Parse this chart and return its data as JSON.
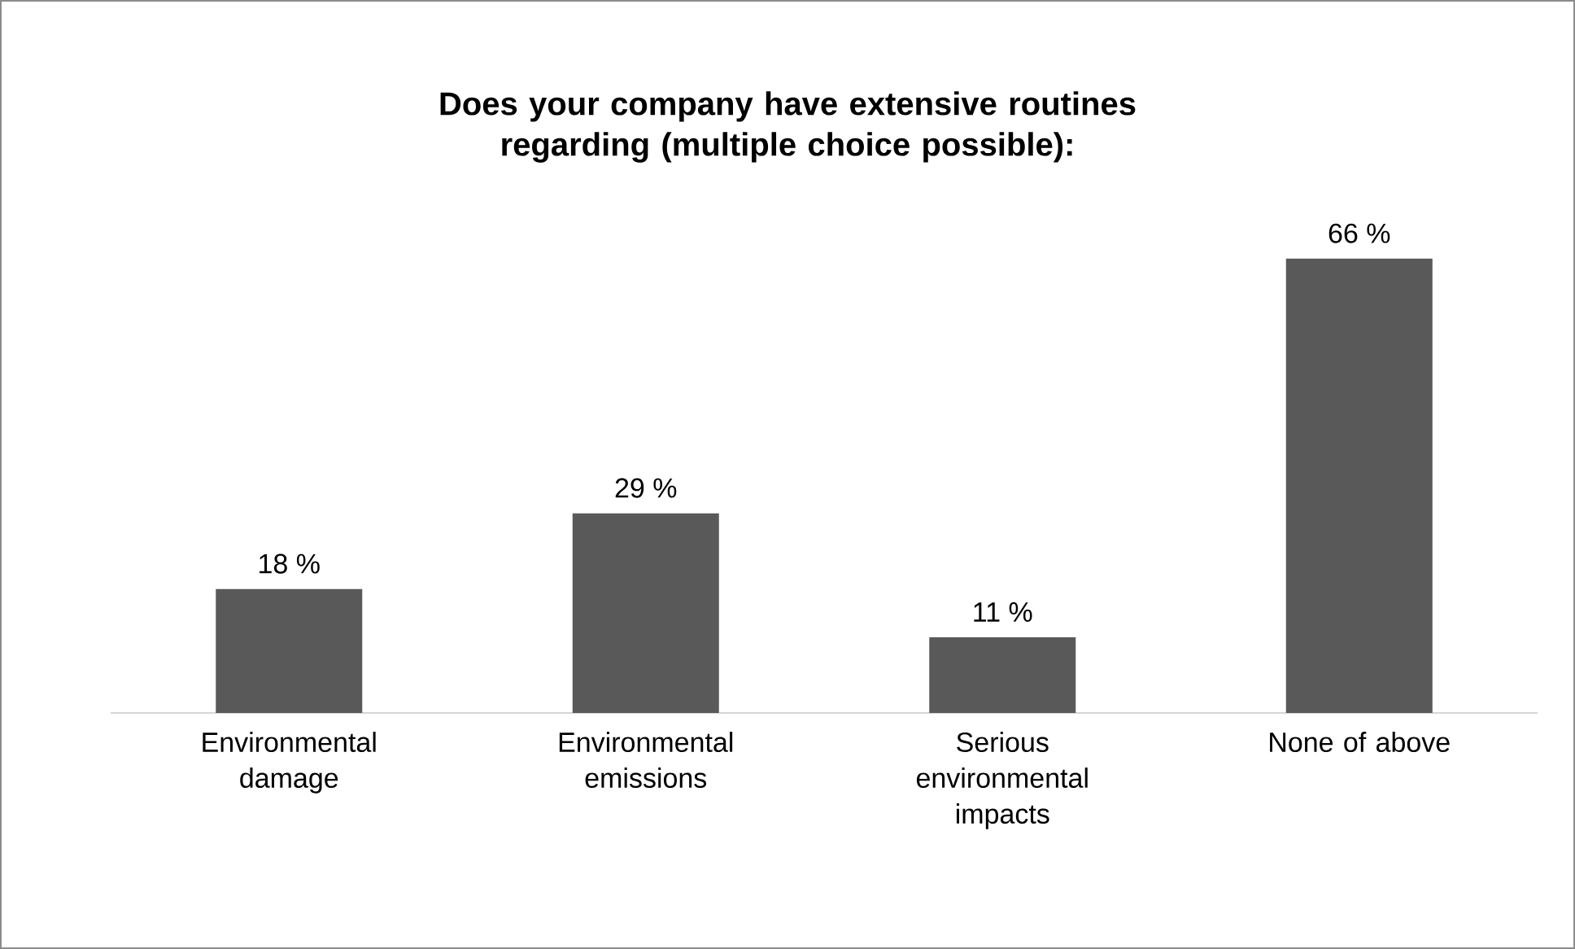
{
  "chart_data": {
    "type": "bar",
    "title": "Does your company have extensive routines regarding (multiple choice possible):",
    "categories": [
      "Environmental damage",
      "Environmental emissions",
      "Serious environmental impacts",
      "None of above"
    ],
    "values": [
      18,
      29,
      11,
      66
    ],
    "value_labels": [
      "18 %",
      "29 %",
      "11 %",
      "66 %"
    ],
    "color": "#595959"
  }
}
